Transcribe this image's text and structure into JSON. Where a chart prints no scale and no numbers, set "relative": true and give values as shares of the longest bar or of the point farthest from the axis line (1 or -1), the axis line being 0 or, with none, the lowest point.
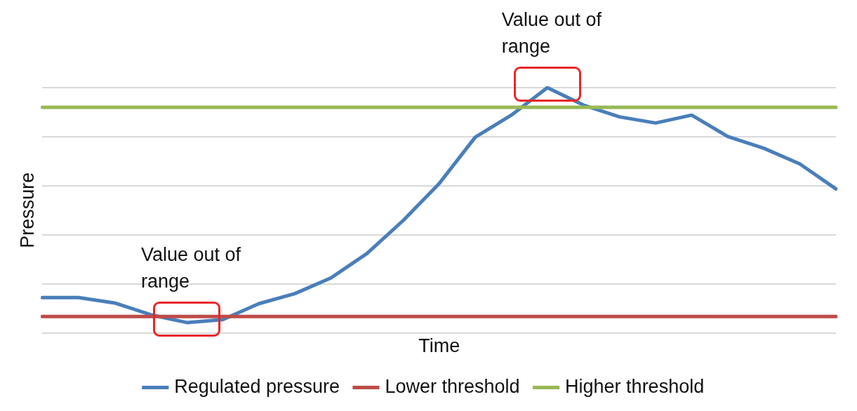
{
  "chart_data": {
    "type": "line",
    "relative": true,
    "xlabel": "Time",
    "ylabel": "Pressure",
    "categories": [
      null,
      null,
      null,
      null,
      null,
      null,
      null,
      null,
      null,
      null,
      null,
      null,
      null,
      null,
      null,
      null,
      null,
      null,
      null,
      null,
      null,
      null,
      null
    ],
    "series": [
      {
        "name": "Regulated pressure",
        "color": "#4a7ebb",
        "values": [
          0.144,
          0.144,
          0.122,
          0.074,
          0.042,
          0.054,
          0.119,
          0.16,
          0.224,
          0.324,
          0.458,
          0.609,
          0.798,
          0.888,
          1,
          0.929,
          0.881,
          0.856,
          0.888,
          0.801,
          0.753,
          0.689,
          0.587
        ]
      },
      {
        "name": "Lower threshold",
        "color": "#be4b48",
        "values": [
          0.067,
          0.067,
          0.067,
          0.067,
          0.067,
          0.067,
          0.067,
          0.067,
          0.067,
          0.067,
          0.067,
          0.067,
          0.067,
          0.067,
          0.067,
          0.067,
          0.067,
          0.067,
          0.067,
          0.067,
          0.067,
          0.067,
          0.067
        ]
      },
      {
        "name": "Higher threshold",
        "color": "#98b954",
        "values": [
          0.92,
          0.92,
          0.92,
          0.92,
          0.92,
          0.92,
          0.92,
          0.92,
          0.92,
          0.92,
          0.92,
          0.92,
          0.92,
          0.92,
          0.92,
          0.92,
          0.92,
          0.92,
          0.92,
          0.92,
          0.92,
          0.92,
          0.92
        ]
      }
    ],
    "annotations": [
      "Value out of range",
      "Value out of range"
    ],
    "grid": "y",
    "legend": "bottom",
    "marker": "none",
    "line_style": "solid"
  }
}
